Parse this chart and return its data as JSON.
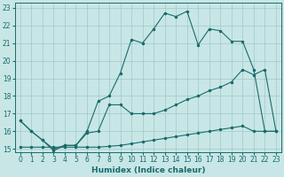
{
  "title": "",
  "xlabel": "Humidex (Indice chaleur)",
  "xlim": [
    -0.5,
    23.5
  ],
  "ylim": [
    14.8,
    23.3
  ],
  "xticks": [
    0,
    1,
    2,
    3,
    4,
    5,
    6,
    7,
    8,
    9,
    10,
    11,
    12,
    13,
    14,
    15,
    16,
    17,
    18,
    19,
    20,
    21,
    22,
    23
  ],
  "yticks": [
    15,
    16,
    17,
    18,
    19,
    20,
    21,
    22,
    23
  ],
  "background_color": "#c8e6e6",
  "grid_color": "#a0c8c8",
  "line_color": "#1a6b6b",
  "line1_x": [
    0,
    1,
    2,
    3,
    4,
    5,
    6,
    7,
    8,
    9,
    10,
    11,
    12,
    13,
    14,
    15,
    16,
    17,
    18,
    19,
    20,
    21,
    22,
    23
  ],
  "line1_y": [
    16.6,
    16.0,
    15.5,
    15.0,
    15.2,
    15.2,
    15.9,
    16.0,
    17.5,
    17.5,
    17.0,
    17.0,
    17.0,
    17.2,
    17.5,
    17.8,
    18.0,
    18.3,
    18.5,
    18.8,
    19.5,
    19.2,
    19.5,
    16.0
  ],
  "line2_x": [
    0,
    1,
    2,
    3,
    4,
    5,
    6,
    7,
    8,
    9,
    10,
    11,
    12,
    13,
    14,
    15,
    16,
    17,
    18,
    19,
    20,
    21,
    22,
    23
  ],
  "line2_y": [
    16.6,
    16.0,
    15.5,
    14.9,
    15.2,
    15.2,
    16.0,
    17.7,
    18.0,
    19.3,
    21.2,
    21.0,
    21.8,
    22.7,
    22.5,
    22.8,
    20.9,
    21.8,
    21.7,
    21.1,
    21.1,
    19.5,
    16.0,
    16.0
  ],
  "line3_x": [
    0,
    1,
    2,
    3,
    4,
    5,
    6,
    7,
    8,
    9,
    10,
    11,
    12,
    13,
    14,
    15,
    16,
    17,
    18,
    19,
    20,
    21,
    22,
    23
  ],
  "line3_y": [
    15.1,
    15.1,
    15.1,
    15.1,
    15.1,
    15.1,
    15.1,
    15.1,
    15.15,
    15.2,
    15.3,
    15.4,
    15.5,
    15.6,
    15.7,
    15.8,
    15.9,
    16.0,
    16.1,
    16.2,
    16.3,
    16.0,
    16.0,
    16.0
  ]
}
